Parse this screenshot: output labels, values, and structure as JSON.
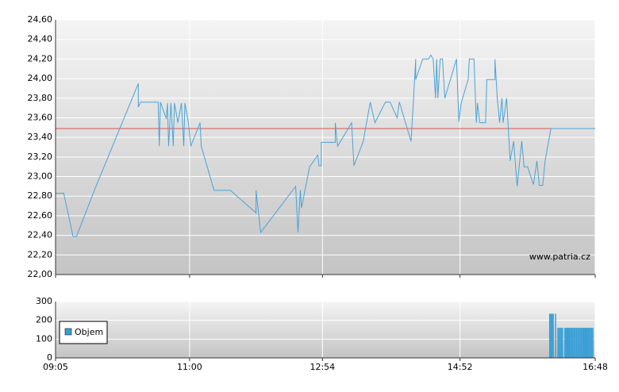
{
  "chart_data": [
    {
      "type": "line",
      "x": [
        "09:05",
        "09:12",
        "09:20",
        "09:23",
        "09:39",
        "10:16",
        "10:16",
        "10:18",
        "10:33",
        "10:34",
        "10:35",
        "10:40",
        "10:41",
        "10:42",
        "10:44",
        "10:46",
        "10:47",
        "10:50",
        "10:53",
        "10:55",
        "10:56",
        "10:59",
        "11:01",
        "11:09",
        "11:10",
        "11:21",
        "11:35",
        "11:57",
        "11:57",
        "12:01",
        "12:31",
        "12:33",
        "12:35",
        "12:36",
        "12:43",
        "12:50",
        "12:51",
        "12:53",
        "12:53",
        "13:05",
        "13:05",
        "13:07",
        "13:19",
        "13:21",
        "13:29",
        "13:35",
        "13:39",
        "13:48",
        "13:52",
        "13:58",
        "14:00",
        "14:10",
        "14:12",
        "14:14",
        "14:14",
        "14:20",
        "14:25",
        "14:27",
        "14:29",
        "14:31",
        "14:32",
        "14:33",
        "14:35",
        "14:37",
        "14:39",
        "14:49",
        "14:51",
        "14:53",
        "14:59",
        "15:00",
        "15:04",
        "15:06",
        "15:07",
        "15:09",
        "15:14",
        "15:15",
        "15:22",
        "15:22",
        "15:24",
        "15:26",
        "15:28",
        "15:29",
        "15:32",
        "15:35",
        "15:38",
        "15:41",
        "15:45",
        "15:47",
        "15:50",
        "15:55",
        "15:58",
        "16:00",
        "16:03",
        "16:05",
        "16:10",
        "16:48"
      ],
      "series": [
        {
          "color": "#4aa3d6",
          "values": [
            22.83,
            22.83,
            22.39,
            22.39,
            22.88,
            23.95,
            23.71,
            23.76,
            23.76,
            23.31,
            23.76,
            23.59,
            23.75,
            23.31,
            23.75,
            23.31,
            23.75,
            23.55,
            23.75,
            23.31,
            23.75,
            23.55,
            23.31,
            23.55,
            23.31,
            22.86,
            22.86,
            22.63,
            22.86,
            22.43,
            22.9,
            22.43,
            22.86,
            22.68,
            23.1,
            23.22,
            23.11,
            23.11,
            23.35,
            23.35,
            23.55,
            23.31,
            23.55,
            23.11,
            23.36,
            23.76,
            23.55,
            23.76,
            23.76,
            23.6,
            23.76,
            23.36,
            23.76,
            24.2,
            23.99,
            24.2,
            24.2,
            24.24,
            24.2,
            23.8,
            24.2,
            23.8,
            24.2,
            24.2,
            23.8,
            24.2,
            23.56,
            23.75,
            23.99,
            24.2,
            24.2,
            23.55,
            23.75,
            23.55,
            23.55,
            23.99,
            23.99,
            24.2,
            23.8,
            23.55,
            23.8,
            23.55,
            23.8,
            23.16,
            23.36,
            22.9,
            23.36,
            23.1,
            23.1,
            22.92,
            23.16,
            22.91,
            22.91,
            23.16,
            23.49,
            23.49
          ]
        }
      ],
      "reference": {
        "value": 23.49,
        "color": "#d9534f"
      },
      "xlim": [
        "09:05",
        "16:48"
      ],
      "ylim": [
        22.0,
        24.6
      ],
      "yticks": [
        {
          "value": 22.0,
          "label": "22,00"
        },
        {
          "value": 22.2,
          "label": "22,20"
        },
        {
          "value": 22.4,
          "label": "22,40"
        },
        {
          "value": 22.6,
          "label": "22,60"
        },
        {
          "value": 22.8,
          "label": "22,80"
        },
        {
          "value": 23.0,
          "label": "23,00"
        },
        {
          "value": 23.2,
          "label": "23,20"
        },
        {
          "value": 23.4,
          "label": "23,40"
        },
        {
          "value": 23.6,
          "label": "23,60"
        },
        {
          "value": 23.8,
          "label": "23,80"
        },
        {
          "value": 24.0,
          "label": "24,00"
        },
        {
          "value": 24.2,
          "label": "24,20"
        },
        {
          "value": 24.4,
          "label": "24,40"
        },
        {
          "value": 24.6,
          "label": "24,60"
        }
      ],
      "annotation": "www.patria.cz",
      "grid": true
    },
    {
      "type": "bar",
      "x": [
        "16:09",
        "16:10",
        "16:11",
        "16:12",
        "16:14",
        "16:16",
        "16:17",
        "16:18",
        "16:19",
        "16:20",
        "16:22",
        "16:23",
        "16:24",
        "16:25",
        "16:26",
        "16:27",
        "16:28",
        "16:29",
        "16:30",
        "16:31",
        "16:32",
        "16:33",
        "16:34",
        "16:35",
        "16:36",
        "16:37",
        "16:38",
        "16:39",
        "16:40",
        "16:41",
        "16:42",
        "16:43",
        "16:44",
        "16:45",
        "16:46"
      ],
      "series": [
        {
          "name": "Objem",
          "color": "#3a9fd6",
          "values": [
            235,
            235,
            235,
            235,
            235,
            160,
            160,
            160,
            160,
            160,
            160,
            160,
            160,
            160,
            160,
            160,
            160,
            160,
            160,
            160,
            160,
            160,
            160,
            160,
            160,
            160,
            160,
            160,
            160,
            160,
            160,
            160,
            160,
            160,
            160
          ]
        }
      ],
      "xlim": [
        "09:05",
        "16:48"
      ],
      "xticks": [
        "09:05",
        "11:00",
        "12:54",
        "14:52",
        "16:48"
      ],
      "ylim": [
        0,
        300
      ],
      "yticks": [
        0,
        100,
        200,
        300
      ],
      "grid": true
    }
  ]
}
